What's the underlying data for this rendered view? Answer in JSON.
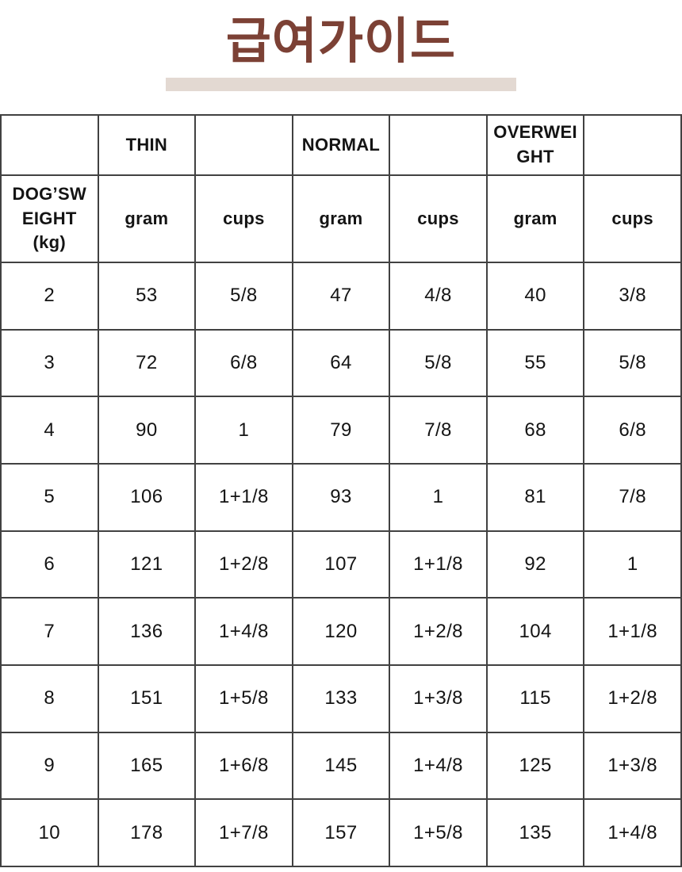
{
  "title": {
    "text": "급여가이드",
    "color": "#7C4135",
    "underline_color": "#E3D9D2"
  },
  "table": {
    "border_color": "#414141",
    "header_row1": [
      "",
      "THIN",
      "",
      "NORMAL",
      "",
      "OVERWEI\nGHT",
      ""
    ],
    "header_row2": [
      "DOG’SW\nEIGHT\n(kg)",
      "gram",
      "cups",
      "gram",
      "cups",
      "gram",
      "cups"
    ],
    "rows": [
      [
        "2",
        "53",
        "5/8",
        "47",
        "4/8",
        "40",
        "3/8"
      ],
      [
        "3",
        "72",
        "6/8",
        "64",
        "5/8",
        "55",
        "5/8"
      ],
      [
        "4",
        "90",
        "1",
        "79",
        "7/8",
        "68",
        "6/8"
      ],
      [
        "5",
        "106",
        "1+1/8",
        "93",
        "1",
        "81",
        "7/8"
      ],
      [
        "6",
        "121",
        "1+2/8",
        "107",
        "1+1/8",
        "92",
        "1"
      ],
      [
        "7",
        "136",
        "1+4/8",
        "120",
        "1+2/8",
        "104",
        "1+1/8"
      ],
      [
        "8",
        "151",
        "1+5/8",
        "133",
        "1+3/8",
        "115",
        "1+2/8"
      ],
      [
        "9",
        "165",
        "1+6/8",
        "145",
        "1+4/8",
        "125",
        "1+3/8"
      ],
      [
        "10",
        "178",
        "1+7/8",
        "157",
        "1+5/8",
        "135",
        "1+4/8"
      ]
    ]
  }
}
